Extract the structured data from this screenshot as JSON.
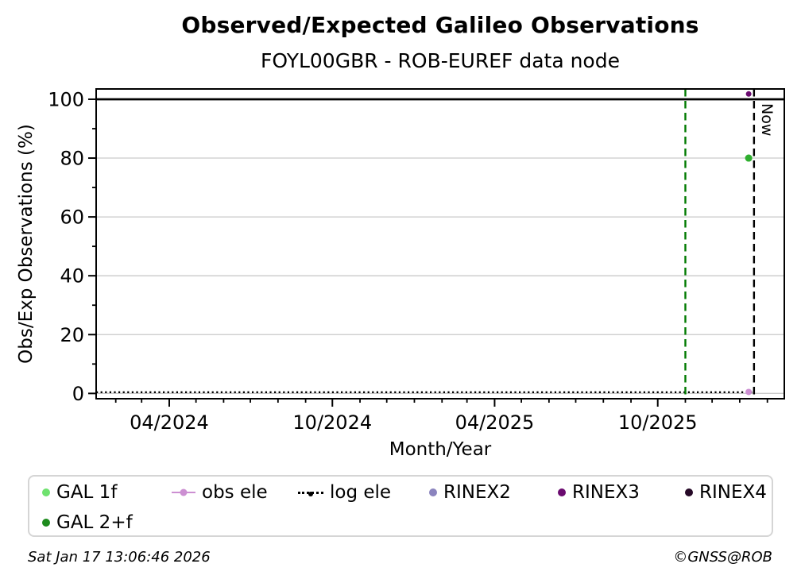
{
  "page": {
    "title": "Observed/Expected Galileo Observations",
    "subtitle": "FOYL00GBR - ROB-EUREF data node",
    "footer_left": "Sat Jan 17 13:06:46 2026",
    "footer_right": "©GNSS@ROB"
  },
  "chart_data": {
    "type": "scatter",
    "title": "Observed/Expected Galileo Observations",
    "subtitle": "FOYL00GBR - ROB-EUREF data node",
    "xlabel": "Month/Year",
    "ylabel": "Obs/Exp Observations (%)",
    "xlim": [
      "2024-01-10",
      "2026-02-20"
    ],
    "ylim": [
      -1.8,
      103.5
    ],
    "x_major_ticks": [
      {
        "date": "2024-04-01",
        "label": "04/2024"
      },
      {
        "date": "2024-10-01",
        "label": "10/2024"
      },
      {
        "date": "2025-04-01",
        "label": "04/2025"
      },
      {
        "date": "2025-10-01",
        "label": "10/2025"
      }
    ],
    "x_minor_tick_interval": "month",
    "y_major_ticks": [
      0,
      20,
      40,
      60,
      80,
      100
    ],
    "y_minor_ticks": [
      10,
      30,
      50,
      70,
      90
    ],
    "grid": {
      "show": true,
      "color": "#c9c9c9"
    },
    "hlines": [
      {
        "name": "expected-100",
        "value": 100,
        "color": "#000000",
        "style": "solid"
      },
      {
        "name": "log-ele",
        "series": "log ele",
        "value": 0.4,
        "color": "#000000",
        "style": "dotted",
        "end": "now"
      }
    ],
    "vlines": [
      {
        "name": "event",
        "date": "2025-11-01",
        "color": "#007A00",
        "style": "dashed"
      },
      {
        "name": "now",
        "date": "2026-01-17",
        "color": "#000000",
        "style": "dashed",
        "label": "Now"
      }
    ],
    "points": [
      {
        "series": "RINEX3",
        "date": "2026-01-11",
        "value": 101.8,
        "color": "#6B0B70",
        "r": 3.5
      },
      {
        "series": "GAL 1f",
        "date": "2026-01-11",
        "value": 80,
        "color": "#6FE26F",
        "r": 4.5
      },
      {
        "series": "GAL 2+f",
        "date": "2026-01-11",
        "value": 80,
        "color": "#2FAE2F",
        "r": 4.5
      },
      {
        "series": "obs ele",
        "date": "2026-01-11",
        "value": 0.5,
        "color": "#CC8FD2",
        "r": 4
      }
    ],
    "legend": {
      "position": "bottom",
      "entries": [
        {
          "label": "GAL 1f",
          "marker": "dot",
          "color": "#6FE26F"
        },
        {
          "label": "obs ele",
          "marker": "line-dot",
          "color": "#CC8FD2"
        },
        {
          "label": "log ele",
          "marker": "dotted-line-dot",
          "color": "#000000"
        },
        {
          "label": "RINEX2",
          "marker": "dot",
          "color": "#8B84BE"
        },
        {
          "label": "RINEX3",
          "marker": "dot",
          "color": "#6B0B70"
        },
        {
          "label": "RINEX4",
          "marker": "dot",
          "color": "#260927"
        },
        {
          "label": "GAL 2+f",
          "marker": "dot",
          "color": "#1E8B1E"
        }
      ]
    }
  }
}
